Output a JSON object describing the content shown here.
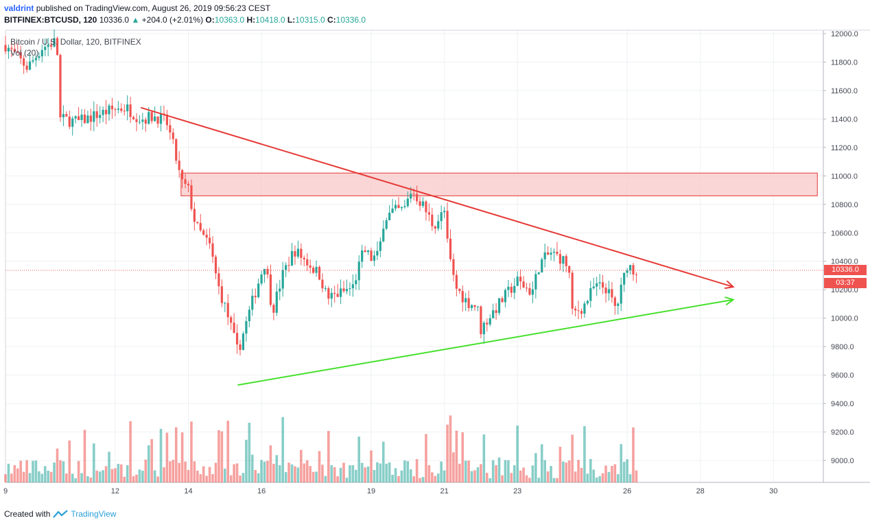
{
  "header": {
    "author": "valdrint",
    "published_text": "published on TradingView.com, August 26, 2019 09:56:23 CEST",
    "symbol": "BITFINEX:BTCUSD, 120",
    "last": "10336.0",
    "change": "+204.0 (+2.01%)",
    "o_label": "O:",
    "o_val": "10363.0",
    "h_label": "H:",
    "h_val": "10418.0",
    "l_label": "L:",
    "l_val": "10315.0",
    "c_label": "C:",
    "c_val": "10336.0"
  },
  "legend": {
    "series_title": "Bitcoin / U.S. Dollar, 120, BITFINEX",
    "volume_title": "Vol (20)"
  },
  "price_tag": {
    "value": "10336.0",
    "countdown": "03:37"
  },
  "footer": {
    "created_with": "Created with",
    "brand": "TradingView"
  },
  "colors": {
    "up": "#26a69a",
    "down": "#ef5350",
    "resistance": "#e53935",
    "support": "#44e02a",
    "zone": "#f8c8c8"
  },
  "chart_data": {
    "type": "candlestick",
    "y_ticks": [
      "12000.0",
      "11800.0",
      "11600.0",
      "11400.0",
      "11200.0",
      "11000.0",
      "10800.0",
      "10600.0",
      "10400.0",
      "10200.0",
      "10000.0",
      "9800.0",
      "9600.0",
      "9400.0",
      "9200.0",
      "9000.0"
    ],
    "ylim": [
      8840,
      12040
    ],
    "x_ticks": [
      {
        "label": "9",
        "day": 9
      },
      {
        "label": "12",
        "day": 12
      },
      {
        "label": "14",
        "day": 14
      },
      {
        "label": "16",
        "day": 16
      },
      {
        "label": "19",
        "day": 19
      },
      {
        "label": "21",
        "day": 21
      },
      {
        "label": "23",
        "day": 23
      },
      {
        "label": "26",
        "day": 26
      },
      {
        "label": "28",
        "day": 28
      },
      {
        "label": "30",
        "day": 30
      }
    ],
    "xlim_days": [
      9,
      31.5
    ],
    "candles_close_path": [
      [
        9.0,
        11920
      ],
      [
        9.6,
        11760
      ],
      [
        10.0,
        11900
      ],
      [
        10.4,
        11950
      ],
      [
        10.5,
        11400
      ],
      [
        11.0,
        11380
      ],
      [
        11.5,
        11430
      ],
      [
        12.0,
        11470
      ],
      [
        12.3,
        11480
      ],
      [
        12.7,
        11400
      ],
      [
        13.1,
        11420
      ],
      [
        13.4,
        11380
      ],
      [
        13.6,
        11200
      ],
      [
        13.8,
        10960
      ],
      [
        14.0,
        10900
      ],
      [
        14.2,
        10650
      ],
      [
        14.6,
        10500
      ],
      [
        14.8,
        10240
      ],
      [
        15.1,
        10000
      ],
      [
        15.35,
        9760
      ],
      [
        15.8,
        10160
      ],
      [
        16.1,
        10400
      ],
      [
        16.3,
        10050
      ],
      [
        16.6,
        10320
      ],
      [
        16.9,
        10480
      ],
      [
        17.3,
        10380
      ],
      [
        17.6,
        10300
      ],
      [
        17.8,
        10140
      ],
      [
        18.2,
        10180
      ],
      [
        18.5,
        10220
      ],
      [
        18.8,
        10480
      ],
      [
        19.0,
        10420
      ],
      [
        19.2,
        10440
      ],
      [
        19.35,
        10700
      ],
      [
        19.6,
        10750
      ],
      [
        19.9,
        10760
      ],
      [
        20.1,
        10900
      ],
      [
        20.4,
        10800
      ],
      [
        20.7,
        10650
      ],
      [
        21.0,
        10750
      ],
      [
        21.1,
        10480
      ],
      [
        21.3,
        10220
      ],
      [
        21.6,
        10120
      ],
      [
        21.9,
        10080
      ],
      [
        22.0,
        9920
      ],
      [
        22.2,
        10000
      ],
      [
        22.5,
        10100
      ],
      [
        22.8,
        10200
      ],
      [
        23.0,
        10260
      ],
      [
        23.4,
        10180
      ],
      [
        23.6,
        10380
      ],
      [
        23.9,
        10460
      ],
      [
        24.2,
        10420
      ],
      [
        24.4,
        10360
      ],
      [
        24.5,
        10030
      ],
      [
        24.8,
        10080
      ],
      [
        25.1,
        10220
      ],
      [
        25.4,
        10220
      ],
      [
        25.7,
        10060
      ],
      [
        26.0,
        10380
      ],
      [
        26.2,
        10336
      ]
    ],
    "series": [
      {
        "name": "Resistance trendline",
        "points": [
          [
            12.7,
            11480
          ],
          [
            28.9,
            10220
          ]
        ]
      },
      {
        "name": "Support trendline",
        "points": [
          [
            15.35,
            9530
          ],
          [
            28.9,
            10130
          ]
        ]
      }
    ],
    "zone": {
      "y_low": 10860,
      "y_high": 11020,
      "day_start": 13.8,
      "day_end": 31.2
    },
    "last_price": 10336.0
  }
}
